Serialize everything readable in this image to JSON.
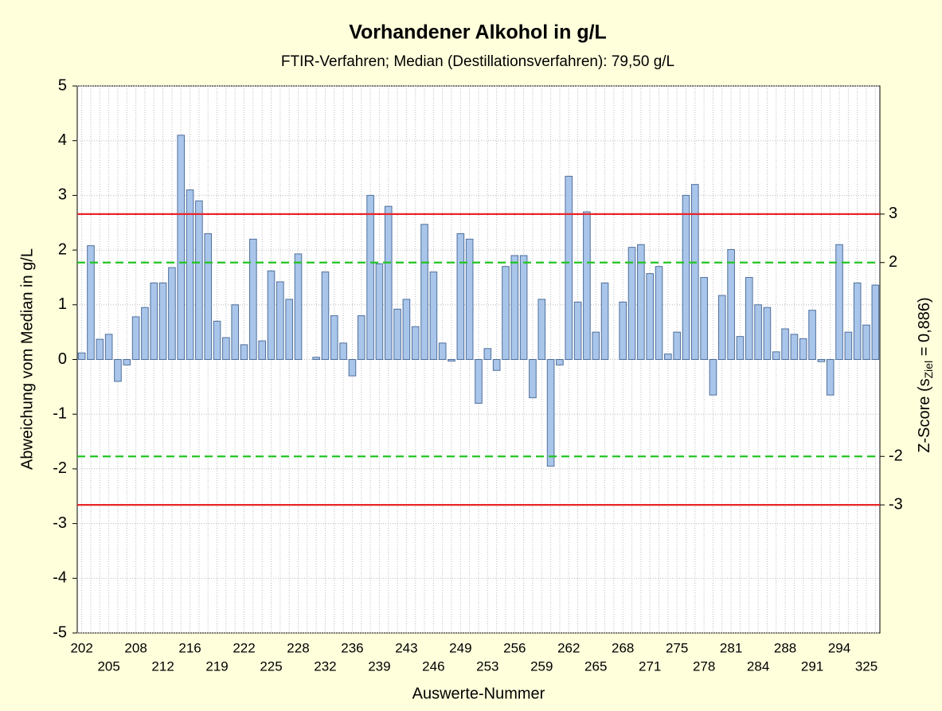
{
  "chart_data": {
    "type": "bar",
    "title": "Vorhandener Alkohol in g/L",
    "subtitle": "FTIR-Verfahren; Median (Destillationsverfahren): 79,50 g/L",
    "xlabel": "Auswerte-Nummer",
    "ylabel": "Abweichung vom Median in g/L",
    "y2label": {
      "prefix": "Z-Score (s",
      "sub": "Ziel",
      "suffix": " = 0,886)"
    },
    "categories": [
      "202",
      null,
      null,
      "205",
      null,
      null,
      "208",
      null,
      null,
      "212",
      null,
      null,
      "216",
      null,
      null,
      "219",
      null,
      null,
      "222",
      null,
      null,
      "225",
      null,
      null,
      "228",
      null,
      null,
      "232",
      null,
      null,
      "236",
      null,
      null,
      "239",
      null,
      null,
      "243",
      null,
      null,
      "246",
      null,
      null,
      "249",
      null,
      null,
      "253",
      null,
      null,
      "256",
      null,
      null,
      "259",
      null,
      null,
      "262",
      null,
      null,
      "265",
      null,
      null,
      "268",
      null,
      null,
      "271",
      null,
      null,
      "275",
      null,
      null,
      "278",
      null,
      null,
      "281",
      null,
      null,
      "284",
      null,
      null,
      "288",
      null,
      null,
      "291",
      null,
      null,
      "294",
      null,
      null,
      "325",
      null
    ],
    "values": [
      0.12,
      2.08,
      0.37,
      0.46,
      -0.4,
      -0.1,
      0.78,
      0.95,
      1.4,
      1.4,
      1.68,
      4.1,
      3.1,
      2.9,
      2.3,
      0.7,
      0.4,
      1.0,
      0.27,
      2.2,
      0.34,
      1.62,
      1.42,
      1.1,
      1.93,
      0,
      0.04,
      1.6,
      0.8,
      0.3,
      -0.3,
      0.8,
      3.0,
      1.75,
      2.8,
      0.92,
      1.1,
      0.6,
      2.47,
      1.6,
      0.3,
      -0.03,
      2.3,
      2.2,
      -0.8,
      0.2,
      -0.2,
      1.7,
      1.9,
      1.9,
      -0.7,
      1.1,
      -1.95,
      -0.1,
      3.35,
      1.05,
      2.7,
      0.5,
      1.4,
      0,
      1.05,
      2.05,
      2.1,
      1.57,
      1.7,
      0.1,
      0.5,
      3.0,
      3.2,
      1.5,
      -0.65,
      1.17,
      2.01,
      0.42,
      1.5,
      1.0,
      0.95,
      0.14,
      0.56,
      0.46,
      0.38,
      0.9,
      -0.04,
      -0.65,
      2.1,
      0.5,
      1.4,
      0.63,
      1.36
    ],
    "color": "#a9c5ea",
    "ylim": [
      -5,
      5
    ],
    "yticks": [
      -5,
      -4,
      -3,
      -2,
      -1,
      0,
      1,
      2,
      3,
      4,
      5
    ],
    "y2lim": [
      -5.643,
      5.643
    ],
    "y2ticks": [
      -3,
      -2,
      2,
      3
    ],
    "reference_lines": [
      {
        "axis": "y2",
        "value": 3,
        "color": "#e8262a",
        "dashed": false
      },
      {
        "axis": "y2",
        "value": 2,
        "color": "#22c422",
        "dashed": true
      },
      {
        "axis": "y2",
        "value": -2,
        "color": "#22c422",
        "dashed": true
      },
      {
        "axis": "y2",
        "value": -3,
        "color": "#e8262a",
        "dashed": false
      }
    ],
    "grid": true
  }
}
